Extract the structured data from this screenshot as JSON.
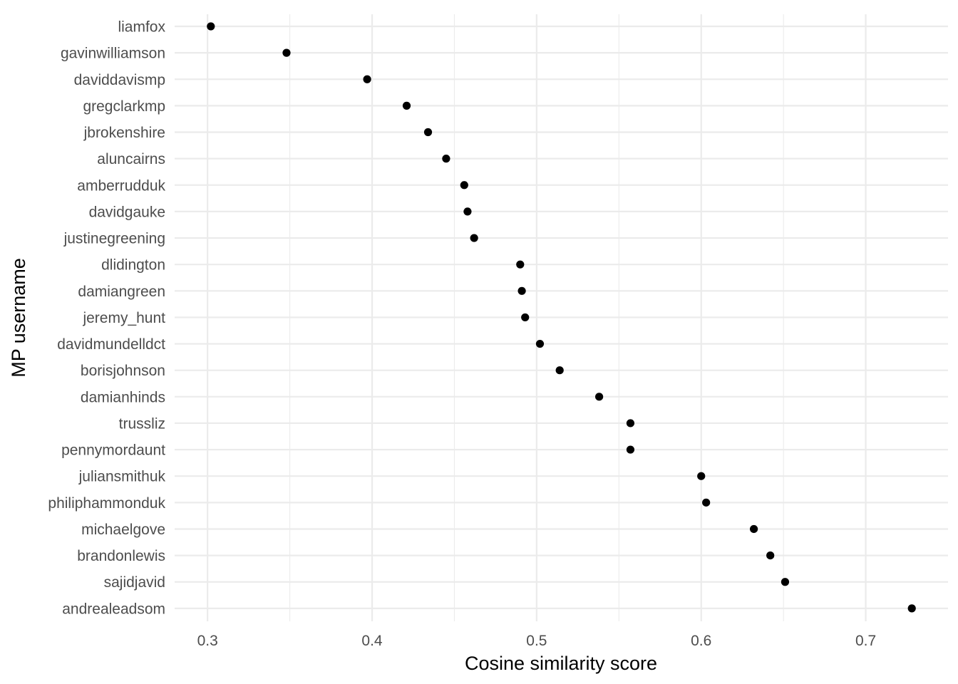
{
  "chart_data": {
    "type": "scatter",
    "title": "",
    "xlabel": "Cosine similarity score",
    "ylabel": "MP username",
    "xlim": [
      0.28,
      0.75
    ],
    "x_ticks": [
      0.3,
      0.4,
      0.5,
      0.6,
      0.7
    ],
    "x_tick_labels": [
      "0.3",
      "0.4",
      "0.5",
      "0.6",
      "0.7"
    ],
    "grid": true,
    "theme": "minimal",
    "point_color": "#000000",
    "grid_color": "#ebebeb",
    "categories": [
      "liamfox",
      "gavinwilliamson",
      "daviddavismp",
      "gregclarkmp",
      "jbrokenshire",
      "aluncairns",
      "amberrudduk",
      "davidgauke",
      "justinegreening",
      "dlidington",
      "damiangreen",
      "jeremy_hunt",
      "davidmundelldct",
      "borisjohnson",
      "damianhinds",
      "trussliz",
      "pennymordaunt",
      "juliansmithuk",
      "philiphammonduk",
      "michaelgove",
      "brandonlewis",
      "sajidjavid",
      "andrealeadsom"
    ],
    "values": [
      0.302,
      0.348,
      0.397,
      0.421,
      0.434,
      0.445,
      0.456,
      0.458,
      0.462,
      0.49,
      0.491,
      0.493,
      0.502,
      0.514,
      0.538,
      0.557,
      0.557,
      0.6,
      0.603,
      0.632,
      0.642,
      0.651,
      0.728
    ]
  }
}
